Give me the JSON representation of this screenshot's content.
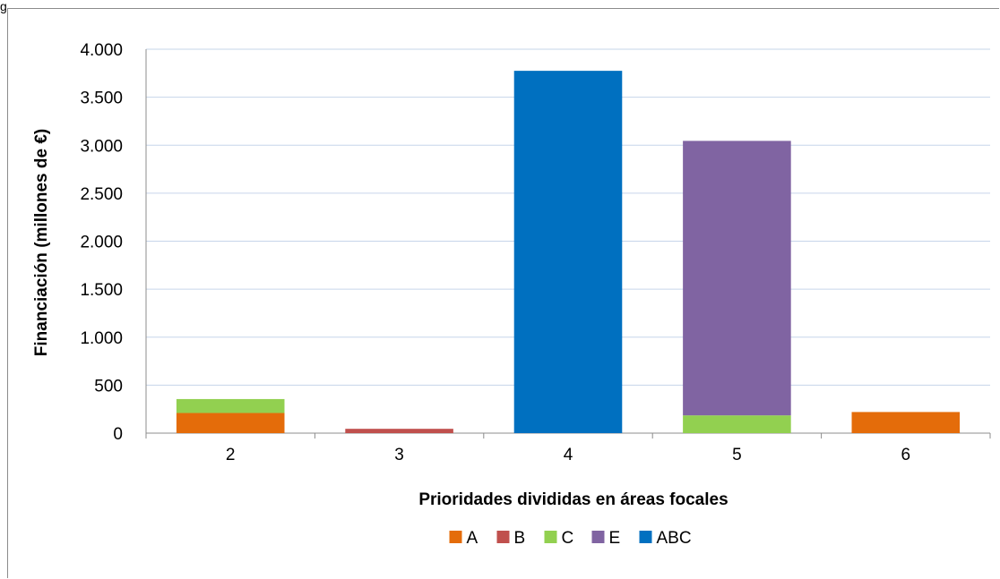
{
  "corner_text": "g",
  "chart_data": {
    "type": "bar",
    "stacked": true,
    "title": "",
    "xlabel": "Prioridades divididas en áreas focales",
    "ylabel": "Financiación (millones de €)",
    "categories": [
      "2",
      "3",
      "4",
      "5",
      "6"
    ],
    "ylim": [
      0,
      4000
    ],
    "yticks": [
      0,
      500,
      1000,
      1500,
      2000,
      2500,
      3000,
      3500,
      4000
    ],
    "ytick_labels": [
      "0",
      "500",
      "1.000",
      "1.500",
      "2.000",
      "2.500",
      "3.000",
      "3.500",
      "4.000"
    ],
    "grid": true,
    "legend_position": "bottom",
    "series": [
      {
        "name": "A",
        "color": "#E46C0A",
        "values": [
          210,
          0,
          0,
          0,
          220
        ]
      },
      {
        "name": "B",
        "color": "#C0504D",
        "values": [
          0,
          45,
          0,
          0,
          0
        ]
      },
      {
        "name": "C",
        "color": "#92D050",
        "values": [
          145,
          0,
          0,
          185,
          0
        ]
      },
      {
        "name": "E",
        "color": "#8064A2",
        "values": [
          0,
          0,
          0,
          2860,
          0
        ]
      },
      {
        "name": "ABC",
        "color": "#0070C0",
        "values": [
          0,
          0,
          3775,
          0,
          0
        ]
      }
    ]
  }
}
